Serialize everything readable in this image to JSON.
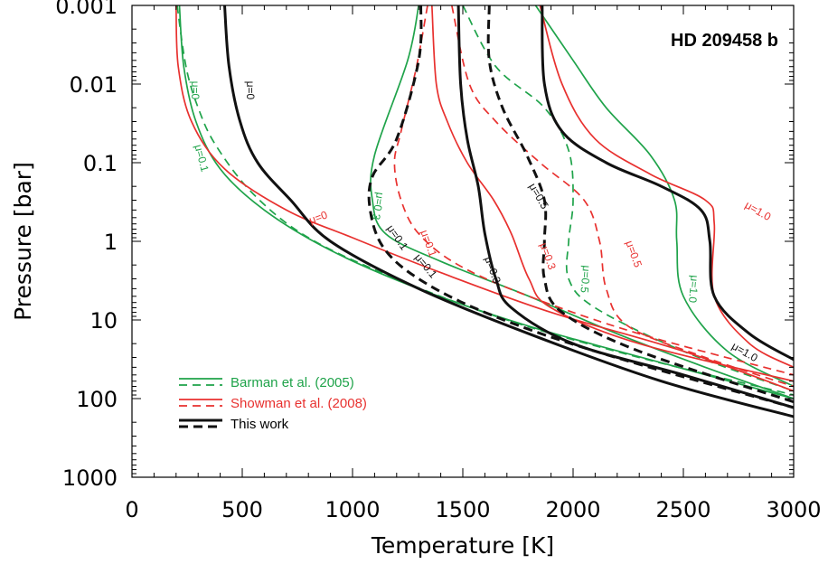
{
  "chart_data": {
    "type": "line",
    "title": "HD 209458 b",
    "xlabel": "Temperature [K]",
    "ylabel": "Pressure [bar]",
    "xlim": [
      0,
      3000
    ],
    "ylim": [
      0.001,
      1000
    ],
    "y_scale": "log",
    "y_reversed": true,
    "x_ticks": [
      "0",
      "500",
      "1000",
      "1500",
      "2000",
      "2500",
      "3000"
    ],
    "y_ticks": [
      "0.001",
      "0.01",
      "0.1",
      "1",
      "10",
      "100",
      "1000"
    ],
    "colors": {
      "barman": "#1fa34a",
      "showman": "#e8312f",
      "this_work": "#111111"
    },
    "legend": [
      {
        "label": "Barman et al. (2005)",
        "group": "barman"
      },
      {
        "label": "Showman et al. (2008)",
        "group": "showman"
      },
      {
        "label": "This work",
        "group": "this_work"
      }
    ],
    "series": [
      {
        "group": "barman",
        "dash": false,
        "label": "μ=0",
        "points": [
          [
            215,
            0.001
          ],
          [
            235,
            0.006
          ],
          [
            290,
            0.03
          ],
          [
            400,
            0.12
          ],
          [
            600,
            0.4
          ],
          [
            900,
            1.3
          ],
          [
            1300,
            4
          ],
          [
            1800,
            12
          ],
          [
            2400,
            35
          ],
          [
            3000,
            100
          ]
        ]
      },
      {
        "group": "barman",
        "dash": true,
        "label": "μ=0.1",
        "points": [
          [
            205,
            0.001
          ],
          [
            245,
            0.006
          ],
          [
            300,
            0.02
          ],
          [
            380,
            0.06
          ],
          [
            550,
            0.25
          ],
          [
            800,
            0.9
          ],
          [
            1200,
            3
          ],
          [
            1700,
            10
          ],
          [
            2300,
            30
          ],
          [
            3000,
            90
          ]
        ]
      },
      {
        "group": "barman",
        "dash": false,
        "label": "μ=0.3",
        "points": [
          [
            1300,
            0.001
          ],
          [
            1250,
            0.005
          ],
          [
            1100,
            0.08
          ],
          [
            1090,
            0.3
          ],
          [
            1150,
            0.8
          ],
          [
            1400,
            1.8
          ],
          [
            1800,
            5
          ],
          [
            2200,
            15
          ],
          [
            2600,
            40
          ],
          [
            3000,
            100
          ]
        ]
      },
      {
        "group": "barman",
        "dash": true,
        "label": "μ=0.5",
        "points": [
          [
            1500,
            0.001
          ],
          [
            1650,
            0.006
          ],
          [
            1870,
            0.02
          ],
          [
            1980,
            0.07
          ],
          [
            2000,
            0.3
          ],
          [
            1980,
            1
          ],
          [
            1980,
            3
          ],
          [
            2100,
            7
          ],
          [
            2500,
            25
          ],
          [
            3000,
            80
          ]
        ]
      },
      {
        "group": "barman",
        "dash": false,
        "label": "μ=1.0",
        "points": [
          [
            1830,
            0.001
          ],
          [
            2000,
            0.005
          ],
          [
            2150,
            0.02
          ],
          [
            2350,
            0.08
          ],
          [
            2460,
            0.3
          ],
          [
            2470,
            1
          ],
          [
            2500,
            5
          ],
          [
            2700,
            25
          ],
          [
            3000,
            70
          ]
        ]
      },
      {
        "group": "showman",
        "dash": false,
        "label": "μ=0",
        "points": [
          [
            200,
            0.001
          ],
          [
            210,
            0.006
          ],
          [
            270,
            0.03
          ],
          [
            420,
            0.12
          ],
          [
            700,
            0.4
          ],
          [
            1000,
            0.9
          ],
          [
            1400,
            2.5
          ],
          [
            1900,
            8
          ],
          [
            2500,
            25
          ],
          [
            3000,
            80
          ]
        ]
      },
      {
        "group": "showman",
        "dash": true,
        "label": "μ=0.1",
        "points": [
          [
            1340,
            0.001
          ],
          [
            1290,
            0.006
          ],
          [
            1220,
            0.04
          ],
          [
            1190,
            0.1
          ],
          [
            1220,
            0.3
          ],
          [
            1300,
            0.8
          ],
          [
            1480,
            2
          ],
          [
            1800,
            5
          ],
          [
            2300,
            15
          ],
          [
            3000,
            50
          ]
        ]
      },
      {
        "group": "showman",
        "dash": false,
        "label": "μ=0.3",
        "points": [
          [
            1360,
            0.001
          ],
          [
            1380,
            0.01
          ],
          [
            1430,
            0.03
          ],
          [
            1520,
            0.1
          ],
          [
            1640,
            0.3
          ],
          [
            1720,
            0.8
          ],
          [
            1800,
            3
          ],
          [
            1900,
            7
          ],
          [
            2300,
            20
          ],
          [
            3000,
            60
          ]
        ]
      },
      {
        "group": "showman",
        "dash": true,
        "label": "μ=0.5",
        "points": [
          [
            1450,
            0.001
          ],
          [
            1530,
            0.01
          ],
          [
            1650,
            0.03
          ],
          [
            1850,
            0.1
          ],
          [
            2050,
            0.3
          ],
          [
            2120,
            1
          ],
          [
            2150,
            4
          ],
          [
            2250,
            12
          ],
          [
            2600,
            30
          ],
          [
            3000,
            70
          ]
        ]
      },
      {
        "group": "showman",
        "dash": false,
        "label": "μ=1.0",
        "points": [
          [
            1850,
            0.001
          ],
          [
            1950,
            0.01
          ],
          [
            2100,
            0.05
          ],
          [
            2350,
            0.14
          ],
          [
            2600,
            0.3
          ],
          [
            2640,
            0.6
          ],
          [
            2640,
            5
          ],
          [
            2800,
            20
          ],
          [
            3000,
            40
          ]
        ]
      },
      {
        "group": "this_work",
        "dash": false,
        "label": "μ=0",
        "points": [
          [
            420,
            0.001
          ],
          [
            440,
            0.006
          ],
          [
            490,
            0.03
          ],
          [
            570,
            0.1
          ],
          [
            720,
            0.3
          ],
          [
            900,
            1
          ],
          [
            1300,
            4
          ],
          [
            1800,
            15
          ],
          [
            2400,
            60
          ],
          [
            3000,
            170
          ]
        ]
      },
      {
        "group": "this_work",
        "dash": true,
        "label": "μ=0.1",
        "points": [
          [
            1310,
            0.001
          ],
          [
            1300,
            0.005
          ],
          [
            1200,
            0.05
          ],
          [
            1090,
            0.15
          ],
          [
            1080,
            0.4
          ],
          [
            1140,
            1.2
          ],
          [
            1300,
            3
          ],
          [
            1600,
            8
          ],
          [
            2100,
            25
          ],
          [
            3000,
            130
          ]
        ]
      },
      {
        "group": "this_work",
        "dash": false,
        "label": "μ=0.3",
        "points": [
          [
            1480,
            0.001
          ],
          [
            1490,
            0.01
          ],
          [
            1520,
            0.05
          ],
          [
            1570,
            0.2
          ],
          [
            1600,
            0.8
          ],
          [
            1650,
            3
          ],
          [
            1720,
            7
          ],
          [
            2000,
            20
          ],
          [
            2500,
            50
          ],
          [
            3000,
            130
          ]
        ]
      },
      {
        "group": "this_work",
        "dash": true,
        "label": "μ=0.5",
        "points": [
          [
            1620,
            0.001
          ],
          [
            1620,
            0.005
          ],
          [
            1680,
            0.02
          ],
          [
            1790,
            0.08
          ],
          [
            1870,
            0.3
          ],
          [
            1870,
            1
          ],
          [
            1870,
            3
          ],
          [
            1950,
            8
          ],
          [
            2300,
            25
          ],
          [
            3000,
            110
          ]
        ]
      },
      {
        "group": "this_work",
        "dash": false,
        "label": "μ=1.0",
        "points": [
          [
            1860,
            0.001
          ],
          [
            1870,
            0.01
          ],
          [
            1950,
            0.04
          ],
          [
            2150,
            0.1
          ],
          [
            2400,
            0.2
          ],
          [
            2580,
            0.4
          ],
          [
            2620,
            1
          ],
          [
            2640,
            5
          ],
          [
            2800,
            15
          ],
          [
            3000,
            32
          ]
        ]
      }
    ],
    "curve_labels": [
      {
        "text": "μ=0",
        "group": "barman",
        "x": 270,
        "y": 0.012,
        "rotate": 90
      },
      {
        "text": "μ=0.1",
        "group": "barman",
        "x": 300,
        "y": 0.09,
        "rotate": 75
      },
      {
        "text": "μ=0.3",
        "group": "barman",
        "x": 1100,
        "y": 0.35,
        "rotate": 100
      },
      {
        "text": "μ=0.5",
        "group": "barman",
        "x": 2040,
        "y": 3,
        "rotate": 95
      },
      {
        "text": "μ=1.0",
        "group": "barman",
        "x": 2530,
        "y": 4,
        "rotate": 95
      },
      {
        "text": "μ=0",
        "group": "showman",
        "x": 850,
        "y": 0.55,
        "rotate": -20
      },
      {
        "text": "μ=0.1",
        "group": "showman",
        "x": 1330,
        "y": 1.1,
        "rotate": 70
      },
      {
        "text": "μ=0.3",
        "group": "showman",
        "x": 1870,
        "y": 1.6,
        "rotate": 70
      },
      {
        "text": "μ=0.5",
        "group": "showman",
        "x": 2260,
        "y": 1.5,
        "rotate": 70
      },
      {
        "text": "μ=1.0",
        "group": "showman",
        "x": 2830,
        "y": 0.45,
        "rotate": 30
      },
      {
        "text": "μ=0",
        "group": "this_work",
        "x": 520,
        "y": 0.012,
        "rotate": 90
      },
      {
        "text": "μ=0.1",
        "group": "this_work",
        "x": 1190,
        "y": 0.95,
        "rotate": 55
      },
      {
        "text": "μ=0.1",
        "group": "this_work",
        "x": 1320,
        "y": 2.2,
        "rotate": 50
      },
      {
        "text": "μ=0.3",
        "group": "this_work",
        "x": 1620,
        "y": 2.4,
        "rotate": 70
      },
      {
        "text": "μ=0.5",
        "group": "this_work",
        "x": 1830,
        "y": 0.28,
        "rotate": 60
      },
      {
        "text": "μ=1.0",
        "group": "this_work",
        "x": 2770,
        "y": 28,
        "rotate": 30
      }
    ]
  }
}
